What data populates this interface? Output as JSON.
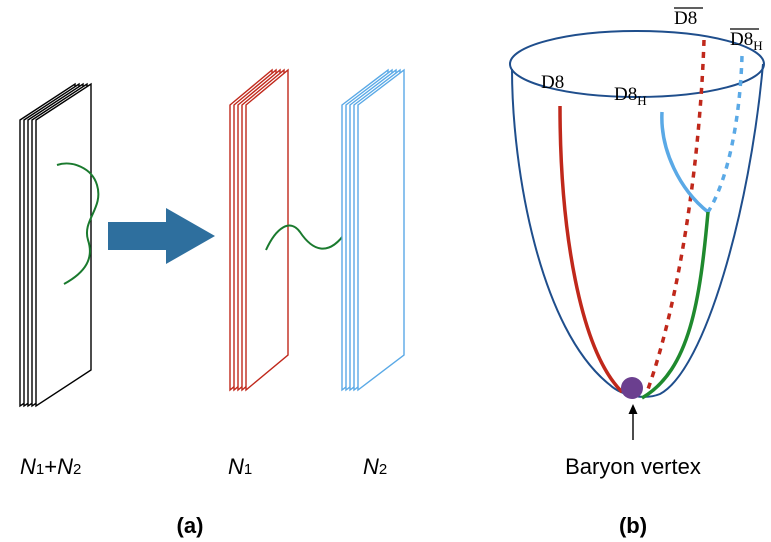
{
  "panel_a": {
    "caption": "(a)",
    "stacks": [
      {
        "label_main": "N",
        "label_sub": "1",
        "label_plus": "+",
        "label_main2": "N",
        "label_sub2": "2",
        "color": "#000000"
      },
      {
        "label_main": "N",
        "label_sub": "1",
        "color": "#c0281b"
      },
      {
        "label_main": "N",
        "label_sub": "2",
        "color": "#5aa9e6"
      }
    ],
    "arrow_color": "#2e6f9e",
    "string_color": "#1a7a2e"
  },
  "panel_b": {
    "caption": "(b)",
    "labels": {
      "d8": "D8",
      "d8h_main": "D8",
      "d8h_sub": "H",
      "d8bar": "D8",
      "d8barh_main": "D8",
      "d8barh_sub": "H"
    },
    "vertex_label": "Baryon vertex",
    "colors": {
      "bowl": "#1f4e8c",
      "d8": "#c0281b",
      "d8h": "#5aa9e6",
      "green": "#1f8a2e",
      "vertex": "#6b3f8f"
    }
  }
}
